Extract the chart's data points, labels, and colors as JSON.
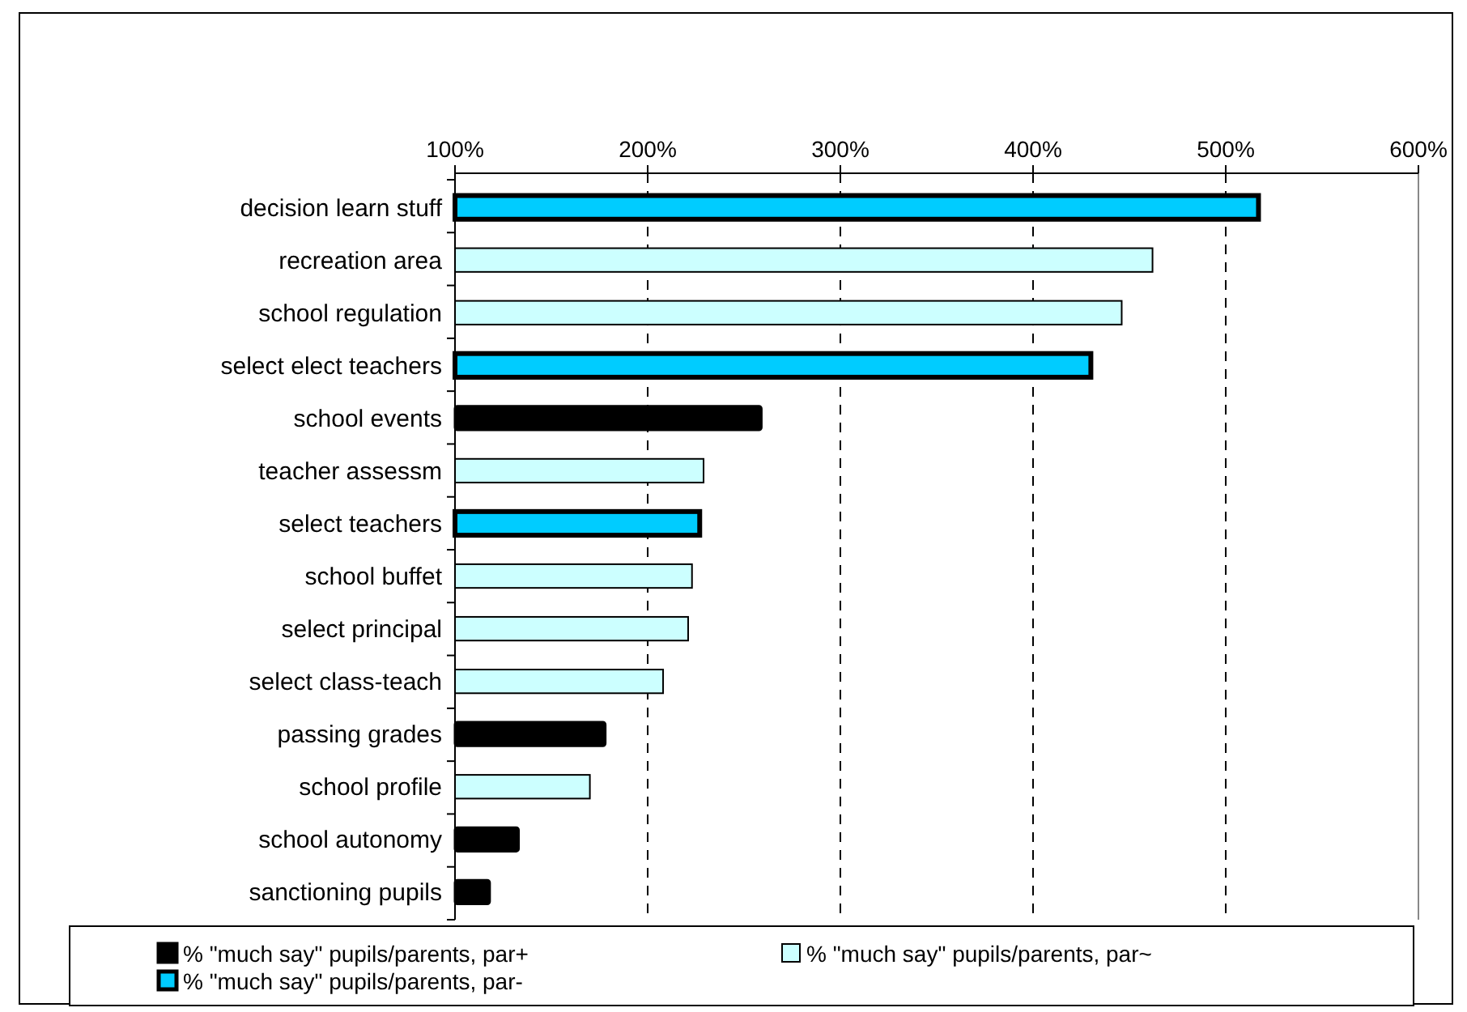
{
  "chart_data": {
    "type": "bar",
    "orientation": "horizontal",
    "categories": [
      "decision learn stuff",
      "recreation area",
      "school regulation",
      "select elect teachers",
      "school events",
      "teacher assessm",
      "select teachers",
      "school buffet",
      "select principal",
      "select class-teach",
      "passing grades",
      "school profile",
      "school autonomy",
      "sanctioning pupils"
    ],
    "series": [
      {
        "name": "% \"much say\" pupils/parents, par+",
        "color": "#000000",
        "values": [
          null,
          null,
          null,
          null,
          259,
          null,
          null,
          null,
          null,
          null,
          178,
          null,
          133,
          118
        ]
      },
      {
        "name": "% \"much say\" pupils/parents, par~",
        "color": "#ccffff",
        "values": [
          null,
          462,
          446,
          null,
          null,
          229,
          null,
          223,
          221,
          208,
          null,
          170,
          null,
          null
        ]
      },
      {
        "name": "% \"much say\" pupils/parents, par-",
        "color": "#00ccff",
        "values": [
          517,
          null,
          null,
          430,
          null,
          null,
          227,
          null,
          null,
          null,
          null,
          null,
          null,
          null
        ]
      }
    ],
    "xlim": [
      100,
      600
    ],
    "xticks": [
      {
        "value": 100,
        "label": "100%"
      },
      {
        "value": 200,
        "label": "200%"
      },
      {
        "value": 300,
        "label": "300%"
      },
      {
        "value": 400,
        "label": "400%"
      },
      {
        "value": 500,
        "label": "500%"
      },
      {
        "value": 600,
        "label": "600%"
      }
    ],
    "grid": "x",
    "legend": "bottom"
  }
}
